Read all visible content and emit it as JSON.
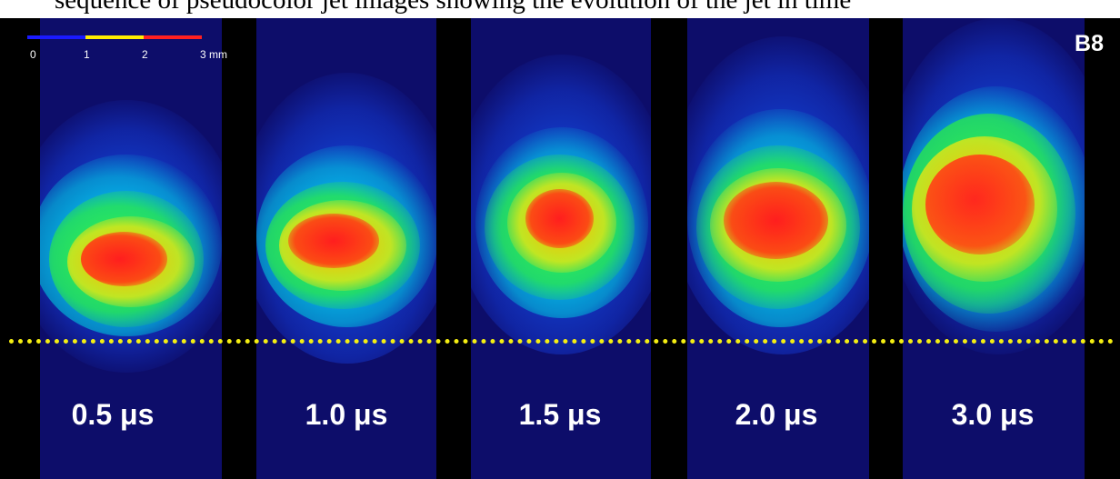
{
  "caption_fragment": "sequence of pseudocolor jet images showing the evolution of the jet in time",
  "panel_id": "B8",
  "scale_bar": {
    "ticks": [
      "0",
      "1",
      "2",
      "3 mm"
    ],
    "colors": [
      "#1a1aff",
      "#ffee00",
      "#ff2020"
    ]
  },
  "frames": [
    {
      "label": "0.5 μs"
    },
    {
      "label": "1.0 μs"
    },
    {
      "label": "1.5 μs"
    },
    {
      "label": "2.0 μs"
    },
    {
      "label": "3.0 μs"
    }
  ],
  "marker_line_color": "#f4ee12"
}
